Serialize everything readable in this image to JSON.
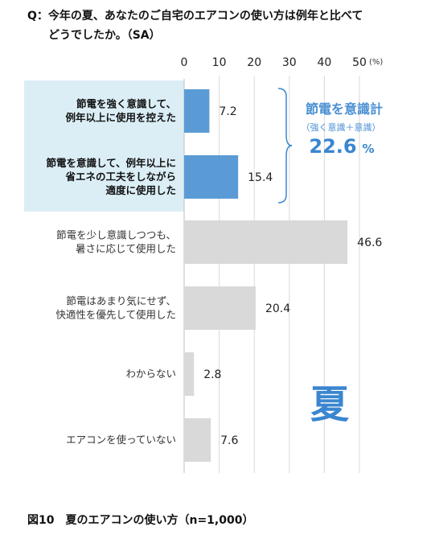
{
  "question": {
    "line1": "Q：今年の夏、あなたのご自宅のエアコンの使い方は例年と比べて",
    "line2": "どうでしたか。（SA）"
  },
  "chart_data": {
    "type": "bar",
    "orientation": "horizontal",
    "categories": [
      [
        "節電を強く意識して、",
        "例年以上に使用を控えた"
      ],
      [
        "節電を意識して、例年以上に",
        "省エネの工夫をしながら",
        "適度に使用した"
      ],
      [
        "節電を少し意識しつつも、",
        "暑さに応じて使用した"
      ],
      [
        "節電はあまり気にせず、",
        "快適性を優先して使用した"
      ],
      [
        "わからない"
      ],
      [
        "エアコンを使っていない"
      ]
    ],
    "values": [
      7.2,
      15.4,
      46.6,
      20.4,
      2.8,
      7.6
    ],
    "value_labels": [
      "7.2",
      "15.4",
      "46.6",
      "20.4",
      "2.8",
      "7.6"
    ],
    "highlighted": [
      true,
      true,
      false,
      false,
      false,
      false
    ],
    "xlim": [
      0,
      50
    ],
    "xticks": [
      "0",
      "10",
      "20",
      "30",
      "40",
      "50"
    ],
    "xunit": "(%)",
    "grid": true,
    "colors": {
      "highlight_bar": "#5b9bd5",
      "highlight_bg": "#dbeef6",
      "other_bar": "#d9d9d9",
      "grid": "#d9d9d9",
      "annotation": "#3a86d0"
    },
    "annotation": {
      "title": "節電を意識計",
      "subtitle": "（強く意識＋意識）",
      "total": "22.6",
      "unit": "%"
    },
    "season_label": "夏"
  },
  "caption": "図10　夏のエアコンの使い方（n=1,000）"
}
